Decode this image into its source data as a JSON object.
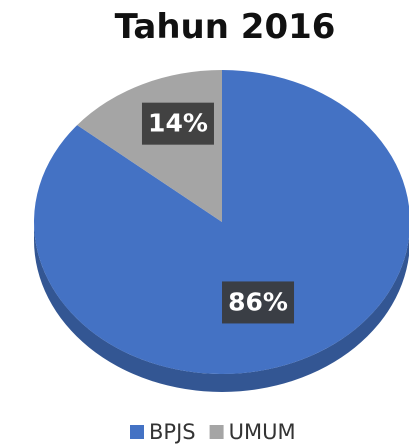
{
  "chart_data": {
    "type": "pie",
    "title": "Tahun 2016",
    "categories": [
      "BPJS",
      "UMUM"
    ],
    "values": [
      86,
      14
    ],
    "value_labels": [
      "86%",
      "14%"
    ],
    "colors": [
      "#4472c4",
      "#a5a5a5"
    ],
    "legend": "bottom"
  }
}
